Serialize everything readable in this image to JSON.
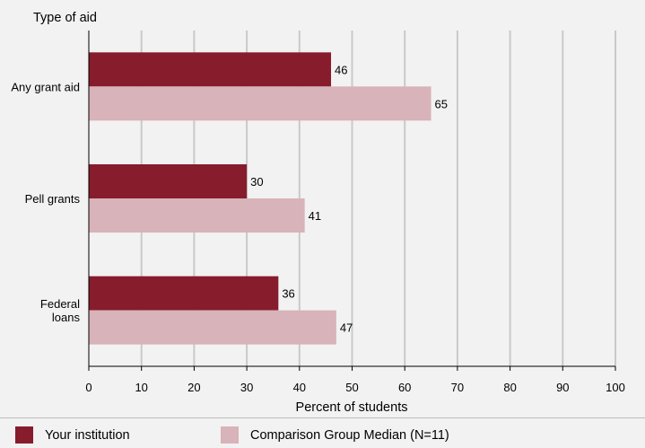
{
  "chart_data": {
    "type": "bar",
    "orientation": "horizontal",
    "title": "Type of aid",
    "xlabel": "Percent of students",
    "xlim": [
      0,
      100
    ],
    "xticks": [
      0,
      10,
      20,
      30,
      40,
      50,
      60,
      70,
      80,
      90,
      100
    ],
    "grid": true,
    "categories": [
      "Any grant aid",
      "Pell grants",
      "Federal\nloans"
    ],
    "series": [
      {
        "name": "Your institution",
        "values": [
          46,
          30,
          36
        ],
        "color": "#861c2c"
      },
      {
        "name": "Comparison Group Median (N=11)",
        "values": [
          65,
          41,
          47
        ],
        "color": "#d8b3b9"
      }
    ],
    "legend": "bottom"
  }
}
